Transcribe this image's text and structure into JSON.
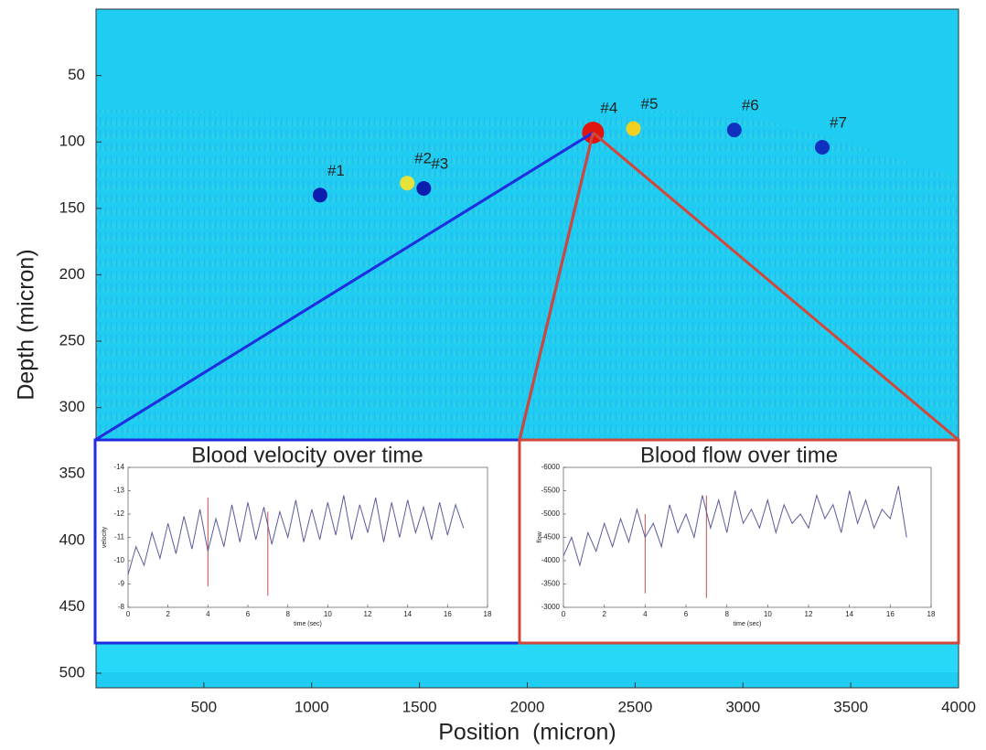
{
  "chart_data": [
    {
      "type": "heatmap",
      "xlabel": "Position  (micron)",
      "ylabel": "Depth (micron)",
      "xlim": [
        0,
        4000
      ],
      "ylim": [
        511,
        0
      ],
      "xticks": [
        500,
        1000,
        1500,
        2000,
        2500,
        3000,
        3500,
        4000
      ],
      "yticks": [
        50,
        100,
        150,
        200,
        250,
        300,
        350,
        400,
        450,
        500
      ],
      "color": "#1fcdf3",
      "vessels": [
        {
          "label": "#1",
          "x": 1039,
          "y": 140,
          "color": "#0b1fae"
        },
        {
          "label": "#2",
          "x": 1443,
          "y": 131,
          "color": "#e6e23a"
        },
        {
          "label": "#3",
          "x": 1520,
          "y": 135,
          "color": "#0b1fae"
        },
        {
          "label": "#4",
          "x": 2305,
          "y": 93,
          "color": "#e0160e"
        },
        {
          "label": "#5",
          "x": 2492,
          "y": 90,
          "color": "#f0d020"
        },
        {
          "label": "#6",
          "x": 2960,
          "y": 91,
          "color": "#1030c0"
        },
        {
          "label": "#7",
          "x": 3368,
          "y": 104,
          "color": "#1030c0"
        }
      ]
    },
    {
      "type": "line",
      "title": "Blood velocity over time",
      "xlabel": "time (sec)",
      "ylabel": "velocity",
      "frame_color": "#1f2de0",
      "x": [
        0,
        0.4,
        0.8,
        1.2,
        1.6,
        2,
        2.4,
        2.8,
        3.2,
        3.6,
        4,
        4.4,
        4.8,
        5.2,
        5.6,
        6,
        6.4,
        6.8,
        7.2,
        7.6,
        8,
        8.4,
        8.8,
        9.2,
        9.6,
        10,
        10.4,
        10.8,
        11.2,
        11.6,
        12,
        12.4,
        12.8,
        13.2,
        13.6,
        14,
        14.4,
        14.8,
        15.2,
        15.6,
        16,
        16.4,
        16.8
      ],
      "series": [
        {
          "color": "#5b5b9c",
          "values": [
            -9.4,
            -10.6,
            -9.8,
            -11.2,
            -10.1,
            -11.6,
            -10.3,
            -11.9,
            -10.5,
            -12.2,
            -10.4,
            -11.8,
            -10.6,
            -12.4,
            -10.8,
            -12.5,
            -10.9,
            -12.3,
            -10.7,
            -12.1,
            -11.0,
            -12.6,
            -10.8,
            -12.2,
            -10.9,
            -12.5,
            -11.1,
            -12.8,
            -10.9,
            -12.4,
            -11.2,
            -12.7,
            -10.8,
            -12.5,
            -11.0,
            -12.6,
            -11.2,
            -12.3,
            -10.9,
            -12.5,
            -11.1,
            -12.4,
            -11.4
          ]
        }
      ],
      "events": [
        {
          "x": 4,
          "range": [
            -8.9,
            -12.7
          ]
        },
        {
          "x": 7,
          "range": [
            -8.5,
            -12.1
          ]
        }
      ],
      "event_color": "#c0504d",
      "xlim": [
        0,
        18
      ],
      "ylim": [
        -8,
        -14
      ],
      "xticks": [
        0,
        2,
        4,
        6,
        8,
        10,
        12,
        14,
        16,
        18
      ],
      "yticks": [
        -14,
        -13,
        -12,
        -11,
        -10,
        -9,
        -8
      ]
    },
    {
      "type": "line",
      "title": "Blood flow over time",
      "xlabel": "time (sec)",
      "ylabel": "flow",
      "frame_color": "#d2473a",
      "x": [
        0,
        0.4,
        0.8,
        1.2,
        1.6,
        2,
        2.4,
        2.8,
        3.2,
        3.6,
        4,
        4.4,
        4.8,
        5.2,
        5.6,
        6,
        6.4,
        6.8,
        7.2,
        7.6,
        8,
        8.4,
        8.8,
        9.2,
        9.6,
        10,
        10.4,
        10.8,
        11.2,
        11.6,
        12,
        12.4,
        12.8,
        13.2,
        13.6,
        14,
        14.4,
        14.8,
        15.2,
        15.6,
        16,
        16.4,
        16.8
      ],
      "series": [
        {
          "color": "#5b5b9c",
          "values": [
            -4100,
            -4500,
            -3900,
            -4600,
            -4200,
            -4800,
            -4300,
            -4900,
            -4400,
            -5100,
            -4500,
            -4800,
            -4300,
            -5200,
            -4600,
            -5000,
            -4500,
            -5400,
            -4700,
            -5300,
            -4600,
            -5500,
            -4800,
            -5100,
            -4700,
            -5300,
            -4600,
            -5200,
            -4800,
            -5000,
            -4700,
            -5400,
            -4900,
            -5200,
            -4600,
            -5500,
            -4800,
            -5300,
            -4700,
            -5100,
            -4900,
            -5600,
            -4500
          ]
        }
      ],
      "events": [
        {
          "x": 4,
          "range": [
            -3300,
            -5000
          ]
        },
        {
          "x": 7,
          "range": [
            -3200,
            -5400
          ]
        }
      ],
      "event_color": "#c0504d",
      "xlim": [
        0,
        18
      ],
      "ylim": [
        -3000,
        -6000
      ],
      "xticks": [
        0,
        2,
        4,
        6,
        8,
        10,
        12,
        14,
        16,
        18
      ],
      "yticks": [
        -6000,
        -5500,
        -5000,
        -4500,
        -4000,
        -3500,
        -3000
      ]
    }
  ]
}
